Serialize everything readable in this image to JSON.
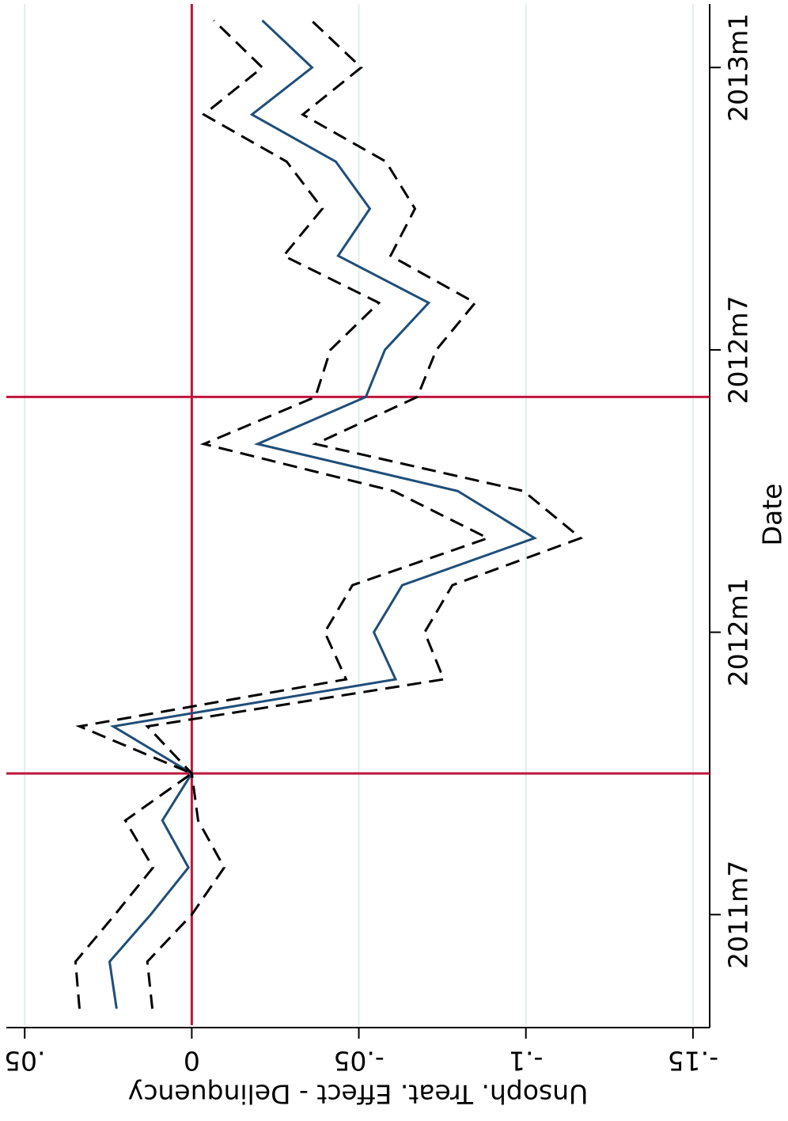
{
  "chart_data": {
    "type": "line",
    "x_label": "Date",
    "y_label": "Unsoph. Treat. Effect - Delinquency",
    "x": [
      616,
      617,
      618,
      619,
      620,
      621,
      622,
      623,
      624,
      625,
      626,
      627,
      628,
      629,
      630,
      631,
      632,
      633,
      634,
      635,
      636,
      637
    ],
    "series": [
      {
        "color": "#1f4e79",
        "dash": "none",
        "values": [
          0.0225,
          0.0246,
          0.0123,
          0.001,
          0.0088,
          0,
          0.0235,
          -0.061,
          -0.0545,
          -0.063,
          -0.1026,
          -0.0796,
          -0.0197,
          -0.0521,
          -0.0578,
          -0.0709,
          -0.0438,
          -0.0533,
          -0.0431,
          -0.018,
          -0.036,
          -0.0211
        ]
      },
      {
        "color": "#000000",
        "dash": "18 10",
        "values": [
          0.0336,
          0.0348,
          0.023,
          0.0116,
          0.0199,
          0,
          0.0336,
          -0.0462,
          -0.0398,
          -0.0481,
          -0.0886,
          -0.0604,
          -0.0036,
          -0.037,
          -0.0415,
          -0.056,
          -0.0275,
          -0.0391,
          -0.0284,
          -0.0036,
          -0.0211,
          -0.0066
        ]
      },
      {
        "color": "#000000",
        "dash": "18 10",
        "values": [
          0.0118,
          0.0133,
          0,
          -0.0097,
          -0.0019,
          0,
          0.0133,
          -0.0754,
          -0.0697,
          -0.078,
          -0.1164,
          -0.0993,
          -0.037,
          -0.0675,
          -0.0732,
          -0.0848,
          -0.0595,
          -0.0668,
          -0.0581,
          -0.0332,
          -0.0507,
          -0.0358
        ]
      }
    ],
    "xlim": [
      615.65,
      637.35
    ],
    "xticks": [
      {
        "value": 618,
        "label": "2011m7"
      },
      {
        "value": 624,
        "label": "2012m1"
      },
      {
        "value": 630,
        "label": "2012m7"
      },
      {
        "value": 636,
        "label": "2013m1"
      }
    ],
    "ylim": [
      -0.155,
      0.0555
    ],
    "yticks": [
      {
        "value": -0.15,
        "label": "-.15"
      },
      {
        "value": -0.1,
        "label": "-.1"
      },
      {
        "value": -0.05,
        "label": "-.05"
      },
      0,
      {
        "value": 0.05,
        "label": ".05"
      }
    ],
    "grid": true,
    "ref_color": "#c0143c",
    "x_ref_lines": [
      621,
      629
    ],
    "y_ref_lines": [
      0
    ],
    "rotation": -90
  }
}
